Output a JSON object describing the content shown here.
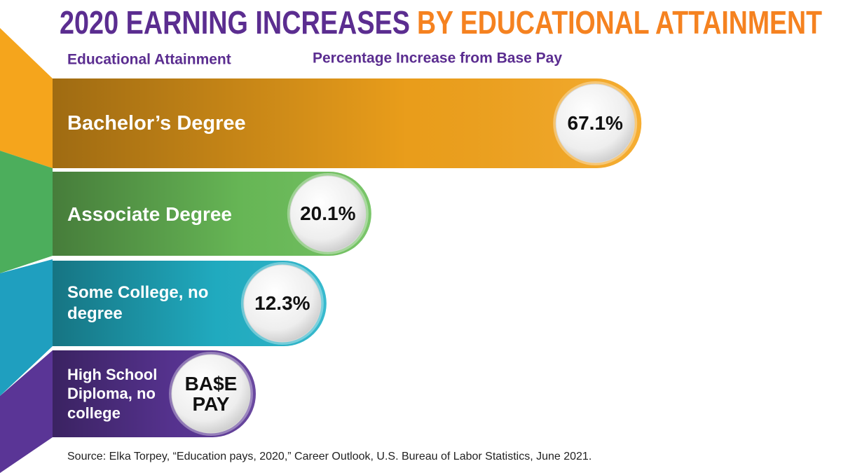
{
  "chart_data": {
    "type": "bar",
    "title": "2020 EARNING INCREASES",
    "title_highlight": "BY EDUCATIONAL ATTAINMENT",
    "category_header": "Educational Attainment",
    "value_header": "Percentage Increase from Base Pay",
    "categories": [
      "Bachelor’s Degree",
      "Associate Degree",
      "Some College, no degree",
      "High School Diploma, no college"
    ],
    "values": [
      67.1,
      20.1,
      12.3,
      0
    ],
    "value_labels": [
      "67.1%",
      "20.1%",
      "12.3%",
      "BA$E PAY"
    ],
    "colors": [
      "#f5a51c",
      "#6cc05a",
      "#22b3c9",
      "#5a3596"
    ],
    "source": "Source: Elka Torpey, “Education pays, 2020,” Career Outlook, U.S. Bureau of Labor Statistics, June 2021."
  }
}
